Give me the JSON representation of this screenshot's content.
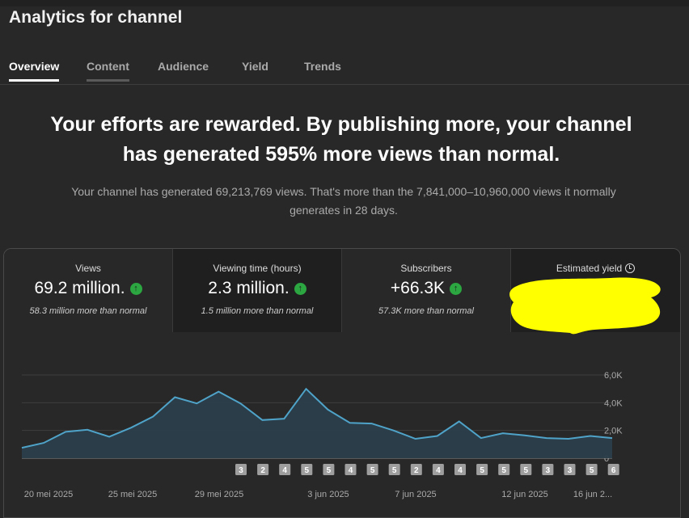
{
  "page_title": "Analytics for channel",
  "tabs": [
    {
      "label": "Overview",
      "active": true
    },
    {
      "label": "Content",
      "active": false
    },
    {
      "label": "Audience",
      "active": false
    },
    {
      "label": "Yield",
      "active": false
    },
    {
      "label": "Trends",
      "active": false
    }
  ],
  "headline": {
    "line1": "Your efforts are rewarded. By publishing more, your channel",
    "line2": "has generated 595% more views than normal."
  },
  "subline": {
    "line1": "Your channel has generated 69,213,769 views. That's more than the 7,841,000–10,960,000 views it normally",
    "line2": "generates in 28 days."
  },
  "metrics": [
    {
      "label": "Views",
      "value": "69.2 million.",
      "note": "58.3 million more than normal",
      "trend": "up"
    },
    {
      "label": "Viewing time (hours)",
      "value": "2.3 million.",
      "note": "1.5 million more than normal",
      "trend": "up"
    },
    {
      "label": "Subscribers",
      "value": "+66.3K",
      "note": "57.3K more than normal",
      "trend": "up"
    },
    {
      "label": "Estimated yield",
      "value": "",
      "note": "",
      "trend": "",
      "redacted": true
    }
  ],
  "colors": {
    "line": "#4fa3c9",
    "fill": "#2a3e4a",
    "up_badge": "#2ba640",
    "redaction": "#ffff00",
    "upload_marker": "#9e9e9e"
  },
  "chart_data": {
    "type": "area",
    "ylim": [
      0,
      6000
    ],
    "y_ticks": [
      {
        "value": 0,
        "label": "0"
      },
      {
        "value": 2000,
        "label": "2,0K"
      },
      {
        "value": 4000,
        "label": "4,0K"
      },
      {
        "value": 6000,
        "label": "6,0K"
      }
    ],
    "x_ticks": [
      "20 mei 2025",
      "25 mei 2025",
      "29 mei 2025",
      "3 jun 2025",
      "7 jun 2025",
      "12 jun 2025",
      "16 jun 2..."
    ],
    "values": [
      750,
      1100,
      1900,
      2050,
      1550,
      2200,
      3000,
      4400,
      3950,
      4800,
      3950,
      2750,
      2850,
      5000,
      3500,
      2550,
      2500,
      2000,
      1400,
      1600,
      2650,
      1450,
      1800,
      1650,
      1450,
      1400,
      1600,
      1450
    ],
    "upload_markers": [
      "3",
      "2",
      "4",
      "5",
      "5",
      "4",
      "5",
      "5",
      "2",
      "4",
      "4",
      "5",
      "5",
      "5",
      "3",
      "3",
      "5",
      "6"
    ]
  }
}
